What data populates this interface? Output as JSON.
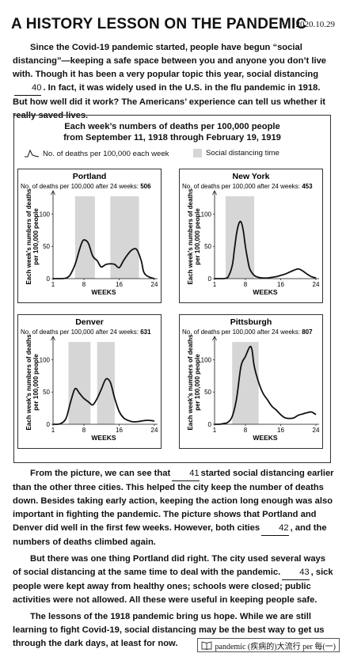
{
  "header": {
    "title": "A HISTORY LESSON ON THE PANDEMIC",
    "date": "2020.10.29"
  },
  "paragraph1": {
    "before_blank": "Since the Covid-19 pandemic started, people have begun “social distancing”—keeping a safe space between you and anyone you don’t live with.  Though it has been a very popular topic this year, social distancing",
    "blank": "40",
    "after_blank": ".  In fact, it was widely used in the U.S. in the flu pandemic in 1918.  But how well did it work?  The Americans’ experience can tell us whether it really saved lives."
  },
  "figure": {
    "title_line1": "Each week’s numbers of deaths per 100,000 people",
    "title_line2": "from September 11, 1918 through February 19, 1919",
    "legend_line_label": "No. of deaths per 100,000 each week",
    "legend_shade_label": "Social distancing time"
  },
  "chart_data": [
    {
      "type": "line",
      "title": "Portland",
      "subtitle": "No. of deaths per 100,000 after 24 weeks:",
      "total": "506",
      "xlabel": "WEEKS",
      "ylabel": "Each week’s numbers of deaths per 100,000 people",
      "xlim": [
        1,
        24
      ],
      "ylim": [
        0,
        130
      ],
      "xticks": [
        1,
        8,
        16,
        24
      ],
      "yticks": [
        0,
        50,
        100
      ],
      "shaded": [
        [
          6,
          10.5
        ],
        [
          14,
          20.5
        ]
      ],
      "x": [
        1,
        2,
        3,
        4,
        4.5,
        5,
        6,
        7,
        7.5,
        8,
        9,
        10,
        11,
        11.5,
        12,
        13,
        14,
        15,
        16,
        17,
        18,
        19,
        20,
        21,
        21.5,
        22,
        23,
        24
      ],
      "values": [
        0,
        0,
        0,
        1,
        3,
        7,
        22,
        45,
        55,
        60,
        55,
        35,
        28,
        22,
        18,
        22,
        23,
        22,
        17,
        28,
        38,
        45,
        45,
        28,
        12,
        6,
        2,
        0
      ]
    },
    {
      "type": "line",
      "title": "New York",
      "subtitle": "No. of deaths per 100,000 after 24 weeks:",
      "total": "453",
      "xlabel": "WEEKS",
      "ylabel": "Each week’s numbers of deaths per 100,000 people",
      "xlim": [
        1,
        24
      ],
      "ylim": [
        0,
        130
      ],
      "xticks": [
        1,
        8,
        16,
        24
      ],
      "yticks": [
        0,
        50,
        100
      ],
      "shaded": [
        [
          3.5,
          10
        ]
      ],
      "x": [
        1,
        2,
        3,
        4,
        5,
        5.5,
        6,
        6.5,
        7,
        7.5,
        8,
        8.5,
        9,
        10,
        11,
        12,
        13,
        14,
        15,
        16,
        17,
        18,
        19,
        20,
        21,
        22,
        23,
        24
      ],
      "values": [
        0,
        0,
        0,
        2,
        20,
        45,
        70,
        85,
        88,
        75,
        50,
        30,
        15,
        5,
        2,
        1,
        1,
        2,
        3,
        5,
        7,
        10,
        13,
        15,
        12,
        7,
        3,
        1
      ]
    },
    {
      "type": "line",
      "title": "Denver",
      "subtitle": "No. of deaths per 100,000 after 24 weeks:",
      "total": "631",
      "xlabel": "WEEKS",
      "ylabel": "Each week’s numbers of deaths per 100,000 people",
      "xlim": [
        1,
        24
      ],
      "ylim": [
        0,
        130
      ],
      "xticks": [
        1,
        8,
        16,
        24
      ],
      "yticks": [
        0,
        50,
        100
      ],
      "shaded": [
        [
          4.5,
          9.5
        ],
        [
          11,
          15
        ]
      ],
      "x": [
        1,
        2,
        3,
        4,
        5,
        6,
        7,
        8,
        9,
        10,
        11,
        12,
        13,
        14,
        15,
        16,
        17,
        18,
        19,
        20,
        21,
        22,
        23,
        24
      ],
      "values": [
        0,
        0,
        2,
        10,
        35,
        55,
        48,
        40,
        35,
        30,
        40,
        55,
        70,
        65,
        40,
        20,
        10,
        6,
        4,
        4,
        5,
        6,
        6,
        5
      ]
    },
    {
      "type": "line",
      "title": "Pittsburgh",
      "subtitle": "No. of deaths per 100,000 after 24 weeks:",
      "total": "807",
      "xlabel": "WEEKS",
      "ylabel": "Each week’s numbers of deaths per 100,000 people",
      "xlim": [
        1,
        24
      ],
      "ylim": [
        0,
        130
      ],
      "xticks": [
        1,
        8,
        16,
        24
      ],
      "yticks": [
        0,
        50,
        100
      ],
      "shaded": [
        [
          5,
          11
        ]
      ],
      "x": [
        1,
        2,
        3,
        4,
        5,
        6,
        7,
        8,
        9,
        9.5,
        10,
        11,
        12,
        13,
        14,
        15,
        16,
        17,
        18,
        19,
        20,
        21,
        22,
        23,
        24
      ],
      "values": [
        0,
        0,
        1,
        3,
        12,
        40,
        90,
        105,
        120,
        115,
        90,
        65,
        48,
        38,
        28,
        22,
        15,
        10,
        9,
        10,
        14,
        16,
        18,
        19,
        15
      ]
    }
  ],
  "paragraph2": {
    "p1_before": "From the picture, we can see that",
    "p1_blank": "41",
    "p1_after": "started social distancing earlier than the other three cities.  This helped the city keep the number of deaths down.  Besides taking early action, keeping the action long enough was also important in fighting the pandemic.  The picture shows that Portland and Denver did well in the first few weeks.  However, both cities",
    "p1_blank2": "42",
    "p1_end": ", and the numbers of deaths climbed again.",
    "p2_before": "But there was one thing Portland did right.  The city used several ways of social distancing at the same time to deal with the pandemic.",
    "p2_blank": "43",
    "p2_after": ", sick people were kept away from healthy ones; schools were closed; public activities were not allowed.  All these were useful in keeping people safe.",
    "p3": "The lessons of the 1918 pandemic bring us hope.  While we are still learning to fight Covid-19, social distancing may be the best way to get us through the dark days, at least for now."
  },
  "footnote": {
    "text": "pandemic (疾病的)大流行   per 每(一)",
    "icon": "book-icon"
  }
}
